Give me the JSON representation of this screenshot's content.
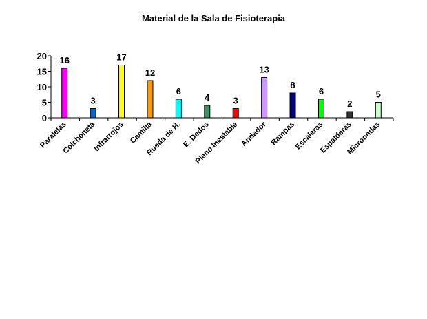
{
  "chart_data": {
    "type": "bar",
    "title": "Material de la Sala de Fisioterapia",
    "xlabel": "",
    "ylabel": "",
    "ylim": [
      0,
      20
    ],
    "yticks": [
      0,
      5,
      10,
      15,
      20
    ],
    "grid": false,
    "legend": "none",
    "categories": [
      "Paralelas",
      "Colchoneta",
      "Infrarrojos",
      "Camilla",
      "Rueda de H.",
      "E. Dedos",
      "Plano Inestable",
      "Andador",
      "Rampas",
      "Escaleras",
      "Espalderas",
      "Microondas"
    ],
    "series": [
      {
        "values": [
          16,
          3,
          17,
          12,
          6,
          4,
          3,
          13,
          8,
          6,
          2,
          5
        ],
        "colors": [
          "#ff00ff",
          "#0066cc",
          "#ffff00",
          "#ff9900",
          "#00ffff",
          "#339966",
          "#ff0000",
          "#cc99ff",
          "#000080",
          "#00ff00",
          "#333333",
          "#ccffcc"
        ]
      }
    ]
  }
}
